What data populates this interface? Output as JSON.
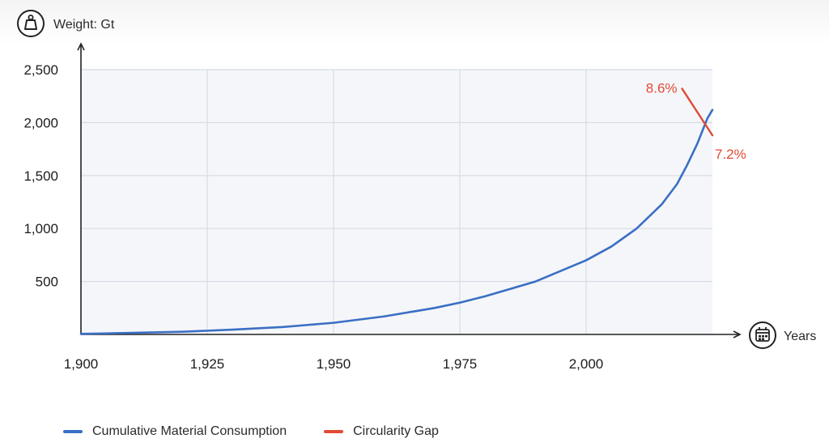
{
  "chart_data": {
    "type": "line",
    "xlabel": "Years",
    "ylabel": "Weight: Gt",
    "xlim": [
      1900,
      2025
    ],
    "ylim": [
      0,
      2500
    ],
    "x_ticks": [
      {
        "value": 1900,
        "label": "1,900"
      },
      {
        "value": 1925,
        "label": "1,925"
      },
      {
        "value": 1950,
        "label": "1,950"
      },
      {
        "value": 1975,
        "label": "1,975"
      },
      {
        "value": 2000,
        "label": "2,000"
      }
    ],
    "y_ticks": [
      {
        "value": 500,
        "label": "500"
      },
      {
        "value": 1000,
        "label": "1,000"
      },
      {
        "value": 1500,
        "label": "1,500"
      },
      {
        "value": 2000,
        "label": "2,000"
      },
      {
        "value": 2500,
        "label": "2,500"
      }
    ],
    "grid": true,
    "legend_position": "bottom-left",
    "series": [
      {
        "name": "Cumulative Material Consumption",
        "color": "#3a6fc4",
        "points": [
          [
            1900,
            5
          ],
          [
            1910,
            15
          ],
          [
            1920,
            25
          ],
          [
            1930,
            45
          ],
          [
            1940,
            70
          ],
          [
            1950,
            110
          ],
          [
            1960,
            170
          ],
          [
            1970,
            250
          ],
          [
            1975,
            300
          ],
          [
            1980,
            360
          ],
          [
            1990,
            500
          ],
          [
            2000,
            700
          ],
          [
            2005,
            830
          ],
          [
            2010,
            1000
          ],
          [
            2015,
            1230
          ],
          [
            2018,
            1420
          ],
          [
            2020,
            1600
          ],
          [
            2022,
            1800
          ],
          [
            2023,
            1920
          ],
          [
            2024,
            2040
          ],
          [
            2025,
            2120
          ]
        ]
      },
      {
        "name": "Circularity Gap",
        "color": "#e04a35",
        "points": [
          [
            2019,
            2320
          ],
          [
            2025,
            1880
          ]
        ]
      }
    ],
    "annotations": [
      {
        "text": "8.6%",
        "x": 2019,
        "y": 2320,
        "color": "#e04a35"
      },
      {
        "text": "7.2%",
        "x": 2025,
        "y": 1880,
        "color": "#e04a35"
      }
    ]
  },
  "icons": {
    "y_axis": "weight-icon",
    "x_axis": "calendar-icon"
  }
}
